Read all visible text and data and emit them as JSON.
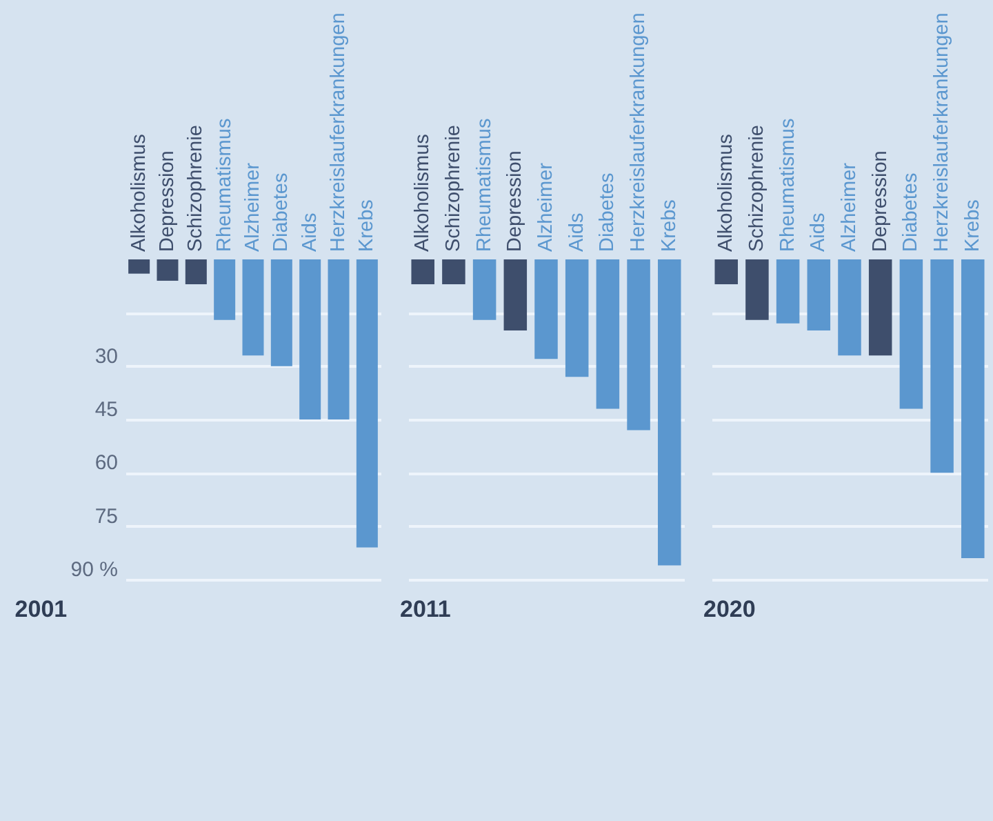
{
  "chart_data": [
    {
      "type": "bar",
      "title": "2001",
      "categories": [
        "Alkoholismus",
        "Depression",
        "Schizophrenie",
        "Rheumatismus",
        "Alzheimer",
        "Diabetes",
        "Aids",
        "Herzkreislauferkrankungen",
        "Krebs"
      ],
      "values": [
        4,
        6,
        7,
        17,
        27,
        30,
        45,
        45,
        81
      ],
      "colors": [
        "#3e4e6c",
        "#3e4e6c",
        "#3e4e6c",
        "#5b97cf",
        "#5b97cf",
        "#5b97cf",
        "#5b97cf",
        "#5b97cf",
        "#5b97cf"
      ],
      "ylim": [
        90,
        0
      ],
      "yticks": [
        {
          "value": 15,
          "label": null
        },
        30,
        45,
        60,
        75,
        {
          "value": 90,
          "label": "90 %"
        }
      ],
      "grid": "y"
    },
    {
      "type": "bar",
      "title": "2011",
      "categories": [
        "Alkoholismus",
        "Schizophrenie",
        "Rheumatismus",
        "Depression",
        "Alzheimer",
        "Aids",
        "Diabetes",
        "Herzkreislauferkrankungen",
        "Krebs"
      ],
      "values": [
        7,
        7,
        17,
        20,
        28,
        33,
        42,
        48,
        86
      ],
      "colors": [
        "#3e4e6c",
        "#3e4e6c",
        "#5b97cf",
        "#3e4e6c",
        "#5b97cf",
        "#5b97cf",
        "#5b97cf",
        "#5b97cf",
        "#5b97cf"
      ],
      "ylim": [
        90,
        0
      ],
      "yticks": [
        15,
        30,
        45,
        60,
        75,
        90
      ],
      "grid": "y",
      "tick_labels": "x"
    },
    {
      "type": "bar",
      "title": "2020",
      "categories": [
        "Alkoholismus",
        "Schizophrenie",
        "Rheumatismus",
        "Aids",
        "Alzheimer",
        "Depression",
        "Diabetes",
        "Herzkreislauferkrankungen",
        "Krebs"
      ],
      "values": [
        7,
        17,
        18,
        20,
        27,
        27,
        42,
        60,
        84
      ],
      "colors": [
        "#3e4e6c",
        "#3e4e6c",
        "#5b97cf",
        "#5b97cf",
        "#5b97cf",
        "#3e4e6c",
        "#5b97cf",
        "#5b97cf",
        "#5b97cf"
      ],
      "ylim": [
        90,
        0
      ],
      "yticks": [
        15,
        30,
        45,
        60,
        75,
        90
      ],
      "grid": "y",
      "tick_labels": "x"
    }
  ]
}
